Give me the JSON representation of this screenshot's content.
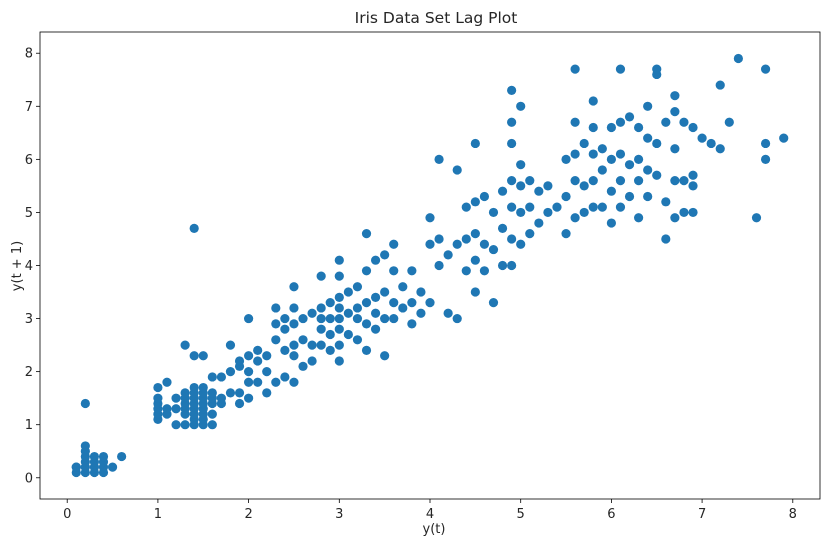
{
  "chart_data": {
    "type": "scatter",
    "title": "Iris Data Set Lag Plot",
    "xlabel": "y(t)",
    "ylabel": "y(t + 1)",
    "xlim": [
      -0.3,
      8.3
    ],
    "ylim": [
      -0.4,
      8.4
    ],
    "xticks": [
      0,
      1,
      2,
      3,
      4,
      5,
      6,
      7,
      8
    ],
    "yticks": [
      0,
      1,
      2,
      3,
      4,
      5,
      6,
      7,
      8
    ],
    "grid": false,
    "marker_color": "#1f77b4",
    "points": [
      [
        0.1,
        0.1
      ],
      [
        0.1,
        0.2
      ],
      [
        0.2,
        0.1
      ],
      [
        0.2,
        0.2
      ],
      [
        0.2,
        0.3
      ],
      [
        0.2,
        0.4
      ],
      [
        0.2,
        0.5
      ],
      [
        0.2,
        0.6
      ],
      [
        0.3,
        0.2
      ],
      [
        0.3,
        0.3
      ],
      [
        0.3,
        0.1
      ],
      [
        0.4,
        0.2
      ],
      [
        0.4,
        0.3
      ],
      [
        0.4,
        0.4
      ],
      [
        0.5,
        0.2
      ],
      [
        0.6,
        0.4
      ],
      [
        0.2,
        1.4
      ],
      [
        0.4,
        0.1
      ],
      [
        0.3,
        0.4
      ],
      [
        0.1,
        0.2
      ],
      [
        1.0,
        1.1
      ],
      [
        1.0,
        1.2
      ],
      [
        1.0,
        1.3
      ],
      [
        1.0,
        1.4
      ],
      [
        1.0,
        1.5
      ],
      [
        1.0,
        1.7
      ],
      [
        1.1,
        1.2
      ],
      [
        1.1,
        1.3
      ],
      [
        1.1,
        1.8
      ],
      [
        1.2,
        1.0
      ],
      [
        1.2,
        1.3
      ],
      [
        1.2,
        1.5
      ],
      [
        1.3,
        1.0
      ],
      [
        1.3,
        1.2
      ],
      [
        1.3,
        1.3
      ],
      [
        1.3,
        1.4
      ],
      [
        1.3,
        1.5
      ],
      [
        1.3,
        1.6
      ],
      [
        1.3,
        2.5
      ],
      [
        1.4,
        1.0
      ],
      [
        1.4,
        1.1
      ],
      [
        1.4,
        1.2
      ],
      [
        1.4,
        1.3
      ],
      [
        1.4,
        1.4
      ],
      [
        1.4,
        1.5
      ],
      [
        1.4,
        1.6
      ],
      [
        1.4,
        1.7
      ],
      [
        1.4,
        2.3
      ],
      [
        1.4,
        4.7
      ],
      [
        1.5,
        1.0
      ],
      [
        1.5,
        1.1
      ],
      [
        1.5,
        1.2
      ],
      [
        1.5,
        1.3
      ],
      [
        1.5,
        1.4
      ],
      [
        1.5,
        1.5
      ],
      [
        1.5,
        1.6
      ],
      [
        1.5,
        1.7
      ],
      [
        1.5,
        2.3
      ],
      [
        1.6,
        1.0
      ],
      [
        1.6,
        1.2
      ],
      [
        1.6,
        1.4
      ],
      [
        1.6,
        1.5
      ],
      [
        1.6,
        1.6
      ],
      [
        1.6,
        1.9
      ],
      [
        1.7,
        1.4
      ],
      [
        1.7,
        1.5
      ],
      [
        1.7,
        1.9
      ],
      [
        1.8,
        1.6
      ],
      [
        1.8,
        2.0
      ],
      [
        1.8,
        2.5
      ],
      [
        1.9,
        1.6
      ],
      [
        1.9,
        2.1
      ],
      [
        1.9,
        2.2
      ],
      [
        1.9,
        1.4
      ],
      [
        2.0,
        1.5
      ],
      [
        2.0,
        1.8
      ],
      [
        2.0,
        2.0
      ],
      [
        2.0,
        2.3
      ],
      [
        2.0,
        3.0
      ],
      [
        2.1,
        1.8
      ],
      [
        2.1,
        2.2
      ],
      [
        2.1,
        2.4
      ],
      [
        2.2,
        1.6
      ],
      [
        2.2,
        2.0
      ],
      [
        2.2,
        2.3
      ],
      [
        2.3,
        1.8
      ],
      [
        2.3,
        2.6
      ],
      [
        2.3,
        2.9
      ],
      [
        2.3,
        3.2
      ],
      [
        2.4,
        1.9
      ],
      [
        2.4,
        2.4
      ],
      [
        2.4,
        2.8
      ],
      [
        2.4,
        3.0
      ],
      [
        2.5,
        1.8
      ],
      [
        2.5,
        2.3
      ],
      [
        2.5,
        2.5
      ],
      [
        2.5,
        2.9
      ],
      [
        2.5,
        3.2
      ],
      [
        2.5,
        3.6
      ],
      [
        2.6,
        2.1
      ],
      [
        2.6,
        2.6
      ],
      [
        2.6,
        3.0
      ],
      [
        2.7,
        2.2
      ],
      [
        2.7,
        2.5
      ],
      [
        2.7,
        3.1
      ],
      [
        2.8,
        2.5
      ],
      [
        2.8,
        2.8
      ],
      [
        2.8,
        3.0
      ],
      [
        2.8,
        3.2
      ],
      [
        2.8,
        3.8
      ],
      [
        2.9,
        2.4
      ],
      [
        2.9,
        2.7
      ],
      [
        2.9,
        3.0
      ],
      [
        2.9,
        3.3
      ],
      [
        3.0,
        2.2
      ],
      [
        3.0,
        2.5
      ],
      [
        3.0,
        2.8
      ],
      [
        3.0,
        3.0
      ],
      [
        3.0,
        3.2
      ],
      [
        3.0,
        3.4
      ],
      [
        3.0,
        3.8
      ],
      [
        3.0,
        4.1
      ],
      [
        3.1,
        2.7
      ],
      [
        3.1,
        3.1
      ],
      [
        3.1,
        3.5
      ],
      [
        3.2,
        2.6
      ],
      [
        3.2,
        3.0
      ],
      [
        3.2,
        3.2
      ],
      [
        3.2,
        3.6
      ],
      [
        3.3,
        2.4
      ],
      [
        3.3,
        2.9
      ],
      [
        3.3,
        3.3
      ],
      [
        3.3,
        3.9
      ],
      [
        3.3,
        4.6
      ],
      [
        3.4,
        2.8
      ],
      [
        3.4,
        3.1
      ],
      [
        3.4,
        3.4
      ],
      [
        3.4,
        4.1
      ],
      [
        3.5,
        2.3
      ],
      [
        3.5,
        3.0
      ],
      [
        3.5,
        3.5
      ],
      [
        3.5,
        4.2
      ],
      [
        3.6,
        3.0
      ],
      [
        3.6,
        3.3
      ],
      [
        3.6,
        3.9
      ],
      [
        3.6,
        4.4
      ],
      [
        3.7,
        3.2
      ],
      [
        3.7,
        3.6
      ],
      [
        3.8,
        3.3
      ],
      [
        3.8,
        3.9
      ],
      [
        3.8,
        2.9
      ],
      [
        3.9,
        3.5
      ],
      [
        3.9,
        3.1
      ],
      [
        4.0,
        3.3
      ],
      [
        4.0,
        4.4
      ],
      [
        4.0,
        4.9
      ],
      [
        4.1,
        4.0
      ],
      [
        4.1,
        4.5
      ],
      [
        4.1,
        6.0
      ],
      [
        4.2,
        3.1
      ],
      [
        4.2,
        4.2
      ],
      [
        4.3,
        3.0
      ],
      [
        4.3,
        4.4
      ],
      [
        4.3,
        5.8
      ],
      [
        4.4,
        3.9
      ],
      [
        4.4,
        4.5
      ],
      [
        4.4,
        5.1
      ],
      [
        4.5,
        3.5
      ],
      [
        4.5,
        4.1
      ],
      [
        4.5,
        4.6
      ],
      [
        4.5,
        5.2
      ],
      [
        4.5,
        6.3
      ],
      [
        4.6,
        3.9
      ],
      [
        4.6,
        4.4
      ],
      [
        4.6,
        5.3
      ],
      [
        4.7,
        3.3
      ],
      [
        4.7,
        4.3
      ],
      [
        4.7,
        5.0
      ],
      [
        4.8,
        4.0
      ],
      [
        4.8,
        4.7
      ],
      [
        4.8,
        5.4
      ],
      [
        4.9,
        4.0
      ],
      [
        4.9,
        4.5
      ],
      [
        4.9,
        5.1
      ],
      [
        4.9,
        5.6
      ],
      [
        4.9,
        6.3
      ],
      [
        4.9,
        6.7
      ],
      [
        4.9,
        7.3
      ],
      [
        5.0,
        4.4
      ],
      [
        5.0,
        5.0
      ],
      [
        5.0,
        5.5
      ],
      [
        5.0,
        5.9
      ],
      [
        5.0,
        7.0
      ],
      [
        5.1,
        4.6
      ],
      [
        5.1,
        5.1
      ],
      [
        5.1,
        5.6
      ],
      [
        5.2,
        4.8
      ],
      [
        5.2,
        5.4
      ],
      [
        5.3,
        5.0
      ],
      [
        5.3,
        5.5
      ],
      [
        5.4,
        5.1
      ],
      [
        5.5,
        4.6
      ],
      [
        5.5,
        5.3
      ],
      [
        5.5,
        6.0
      ],
      [
        5.6,
        4.9
      ],
      [
        5.6,
        5.6
      ],
      [
        5.6,
        6.1
      ],
      [
        5.6,
        6.7
      ],
      [
        5.6,
        7.7
      ],
      [
        5.7,
        5.0
      ],
      [
        5.7,
        5.5
      ],
      [
        5.7,
        6.3
      ],
      [
        5.8,
        5.1
      ],
      [
        5.8,
        5.6
      ],
      [
        5.8,
        6.1
      ],
      [
        5.8,
        6.6
      ],
      [
        5.8,
        7.1
      ],
      [
        5.9,
        5.1
      ],
      [
        5.9,
        5.8
      ],
      [
        6.0,
        4.8
      ],
      [
        6.0,
        5.4
      ],
      [
        6.0,
        6.0
      ],
      [
        6.0,
        6.6
      ],
      [
        6.1,
        5.1
      ],
      [
        6.1,
        5.6
      ],
      [
        6.1,
        6.1
      ],
      [
        6.1,
        6.7
      ],
      [
        6.1,
        7.7
      ],
      [
        6.2,
        5.3
      ],
      [
        6.2,
        5.9
      ],
      [
        6.3,
        4.9
      ],
      [
        6.3,
        5.6
      ],
      [
        6.3,
        6.0
      ],
      [
        6.3,
        6.6
      ],
      [
        6.4,
        5.3
      ],
      [
        6.4,
        5.8
      ],
      [
        6.4,
        6.4
      ],
      [
        6.4,
        7.0
      ],
      [
        6.5,
        5.7
      ],
      [
        6.5,
        6.3
      ],
      [
        6.5,
        7.6
      ],
      [
        6.5,
        7.7
      ],
      [
        6.6,
        4.5
      ],
      [
        6.6,
        6.7
      ],
      [
        6.7,
        4.9
      ],
      [
        6.7,
        5.6
      ],
      [
        6.7,
        6.2
      ],
      [
        6.7,
        6.9
      ],
      [
        6.7,
        7.2
      ],
      [
        6.8,
        5.0
      ],
      [
        6.8,
        5.6
      ],
      [
        6.8,
        6.7
      ],
      [
        6.9,
        5.5
      ],
      [
        6.9,
        5.7
      ],
      [
        6.9,
        6.6
      ],
      [
        7.0,
        6.4
      ],
      [
        7.1,
        6.3
      ],
      [
        7.2,
        6.2
      ],
      [
        7.2,
        7.4
      ],
      [
        7.3,
        6.7
      ],
      [
        7.4,
        7.9
      ],
      [
        7.6,
        4.9
      ],
      [
        7.7,
        6.0
      ],
      [
        7.7,
        6.3
      ],
      [
        7.7,
        7.7
      ],
      [
        7.9,
        6.4
      ],
      [
        6.9,
        5.0
      ],
      [
        6.6,
        5.2
      ],
      [
        6.2,
        6.8
      ],
      [
        5.9,
        6.2
      ]
    ]
  }
}
